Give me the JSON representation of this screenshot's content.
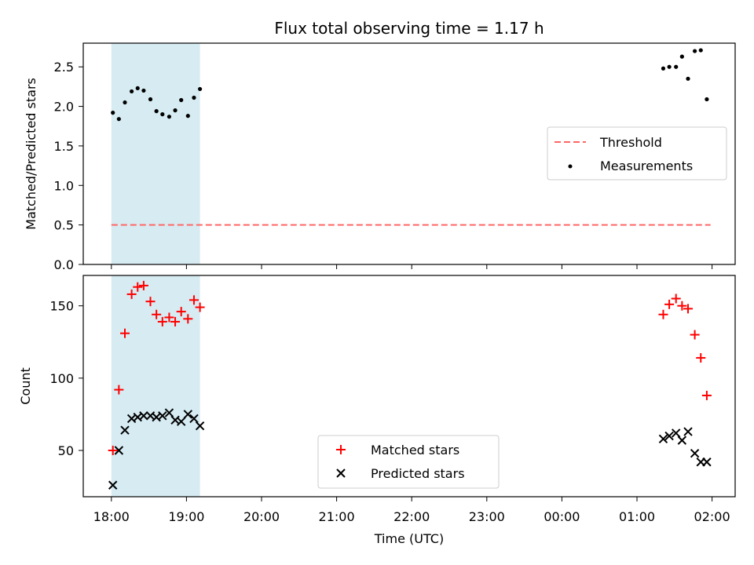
{
  "title": "Flux total observing time = 1.17 h",
  "xlabel": "Time (UTC)",
  "x_ticks": [
    "18:00",
    "19:00",
    "20:00",
    "21:00",
    "22:00",
    "23:00",
    "00:00",
    "01:00",
    "02:00"
  ],
  "colors": {
    "shade": "#add8e6",
    "threshold": "#ff6666",
    "measurements": "#000000",
    "matched": "#ff0000",
    "predicted": "#000000"
  },
  "chart_data": [
    {
      "type": "scatter",
      "title": "Flux total observing time = 1.17 h",
      "ylabel": "Matched/Predicted stars",
      "ylim": [
        0,
        2.8
      ],
      "y_ticks": [
        "0.0",
        "0.5",
        "1.0",
        "1.5",
        "2.0",
        "2.5"
      ],
      "x_unit": "hours since 18:00 UTC",
      "shaded_span": [
        0.0,
        1.18
      ],
      "legend": {
        "position": "center-right",
        "entries": [
          "Threshold",
          "Measurements"
        ]
      },
      "threshold": {
        "name": "Threshold",
        "value": 0.5,
        "x_range": [
          0.0,
          7.98
        ]
      },
      "series": [
        {
          "name": "Measurements",
          "x": [
            0.02,
            0.1,
            0.18,
            0.27,
            0.35,
            0.43,
            0.52,
            0.6,
            0.68,
            0.77,
            0.85,
            0.93,
            1.02,
            1.1,
            1.18,
            7.35,
            7.43,
            7.52,
            7.6,
            7.68,
            7.77,
            7.85,
            7.93
          ],
          "y": [
            1.92,
            1.84,
            2.05,
            2.19,
            2.23,
            2.2,
            2.09,
            1.94,
            1.9,
            1.87,
            1.95,
            2.08,
            1.88,
            2.11,
            2.22,
            2.48,
            2.5,
            2.5,
            2.63,
            2.35,
            2.7,
            2.71,
            2.09
          ]
        }
      ]
    },
    {
      "type": "scatter",
      "ylabel": "Count",
      "ylim": [
        18,
        171
      ],
      "y_ticks": [
        "50",
        "100",
        "150"
      ],
      "legend": {
        "position": "bottom-center",
        "entries": [
          "Matched stars",
          "Predicted stars"
        ]
      },
      "series": [
        {
          "name": "Matched stars",
          "marker": "+",
          "x": [
            0.02,
            0.1,
            0.18,
            0.27,
            0.35,
            0.43,
            0.52,
            0.6,
            0.68,
            0.77,
            0.85,
            0.93,
            1.02,
            1.1,
            1.18,
            7.35,
            7.43,
            7.52,
            7.6,
            7.68,
            7.77,
            7.85,
            7.93
          ],
          "y": [
            50,
            92,
            131,
            158,
            163,
            164,
            153,
            144,
            139,
            142,
            139,
            146,
            141,
            154,
            149,
            144,
            151,
            155,
            150,
            148,
            130,
            114,
            88
          ]
        },
        {
          "name": "Predicted stars",
          "marker": "x",
          "x": [
            0.02,
            0.1,
            0.18,
            0.27,
            0.35,
            0.43,
            0.52,
            0.6,
            0.68,
            0.77,
            0.85,
            0.93,
            1.02,
            1.1,
            1.18,
            7.35,
            7.43,
            7.52,
            7.6,
            7.68,
            7.77,
            7.85,
            7.93
          ],
          "y": [
            26,
            50,
            64,
            72,
            73,
            74,
            74,
            73,
            74,
            76,
            71,
            70,
            75,
            72,
            67,
            58,
            60,
            62,
            57,
            63,
            48,
            42,
            42
          ]
        }
      ]
    }
  ]
}
